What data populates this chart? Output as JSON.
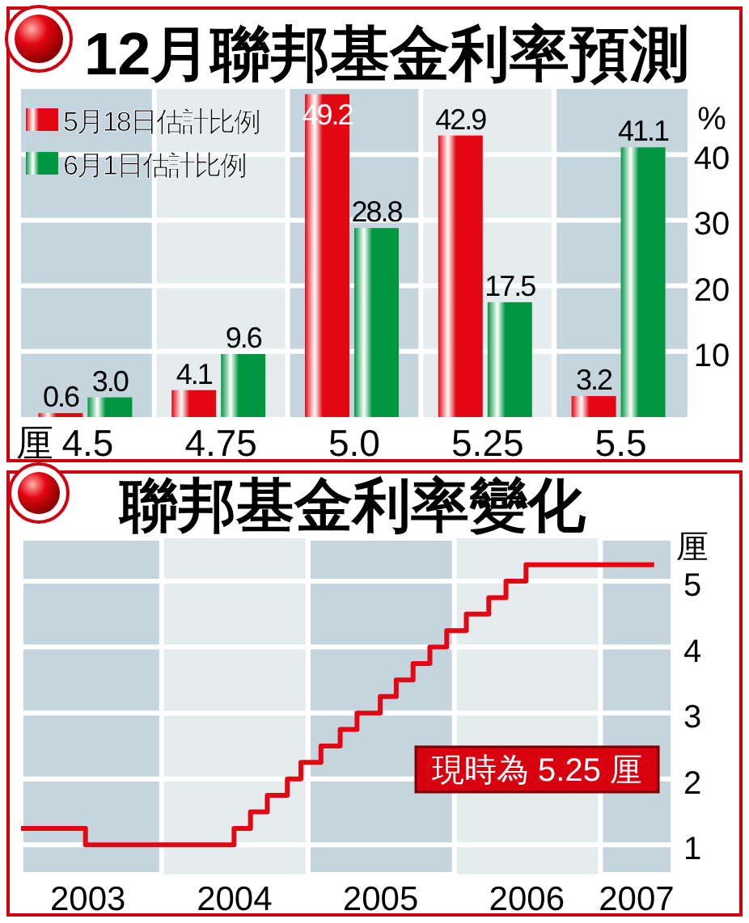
{
  "chart_data": [
    {
      "type": "bar",
      "title": "12月聯邦基金利率預測",
      "xlabel": "厘",
      "ylabel": "%",
      "categories": [
        "4.5",
        "4.75",
        "5.0",
        "5.25",
        "5.5"
      ],
      "series": [
        {
          "name": "5月18日估計比例",
          "color": "#e30613",
          "values": [
            0.6,
            4.1,
            49.2,
            42.9,
            3.2
          ],
          "value_labels": [
            "0.6",
            "4.1",
            "49.2",
            "42.9",
            "3.2"
          ]
        },
        {
          "name": "6月1日估計比例",
          "color": "#009640",
          "values": [
            3.0,
            9.6,
            28.8,
            17.5,
            41.1
          ],
          "value_labels": [
            "3.0",
            "9.6",
            "28.8",
            "17.5",
            "41.1"
          ]
        }
      ],
      "ylim": [
        0,
        50
      ],
      "yticks": [
        10,
        20,
        30,
        40
      ],
      "grid": "y",
      "legend": "top left"
    },
    {
      "type": "step",
      "title": "聯邦基金利率變化",
      "ylabel": "厘",
      "series": [
        {
          "color": "#e30613",
          "x": [
            "2003-01-15",
            "2003-06-25",
            "2004-06-30",
            "2004-08-10",
            "2004-09-21",
            "2004-11-10",
            "2004-12-14",
            "2005-02-02",
            "2005-03-22",
            "2005-05-03",
            "2005-06-30",
            "2005-08-09",
            "2005-09-20",
            "2005-11-01",
            "2005-12-13",
            "2006-01-31",
            "2006-03-28",
            "2006-05-10",
            "2006-06-29",
            "2007-05-15"
          ],
          "values": [
            1.25,
            1.0,
            1.25,
            1.5,
            1.75,
            2.0,
            2.25,
            2.5,
            2.75,
            3.0,
            3.25,
            3.5,
            3.75,
            4.0,
            4.25,
            4.5,
            4.75,
            5.0,
            5.25,
            5.25
          ]
        }
      ],
      "xlim": [
        "2003-01-15",
        "2007-07-01"
      ],
      "xticks": [
        {
          "value": "2003-07-01",
          "label": "2003"
        },
        {
          "value": "2004-07-01",
          "label": "2004"
        },
        {
          "value": "2005-07-01",
          "label": "2005"
        },
        {
          "value": "2006-07-01",
          "label": "2006"
        },
        {
          "value": "2007-04-01",
          "label": "2007"
        }
      ],
      "ylim": [
        0.55,
        5.65
      ],
      "yticks": [
        1,
        2,
        3,
        4,
        5
      ],
      "grid": "y",
      "bands": [
        {
          "axis": "x",
          "from": "2003-01-15",
          "to": "2004-01-01",
          "label": null,
          "color": "#c5d5de"
        },
        {
          "axis": "x",
          "from": "2005-01-01",
          "to": "2006-01-01",
          "label": null,
          "color": "#c5d5de"
        },
        {
          "axis": "x",
          "from": "2007-01-01",
          "to": "2007-07-01",
          "label": null,
          "color": "#c5d5de"
        }
      ],
      "annotations": [
        "現時為 5.25 厘"
      ]
    }
  ]
}
